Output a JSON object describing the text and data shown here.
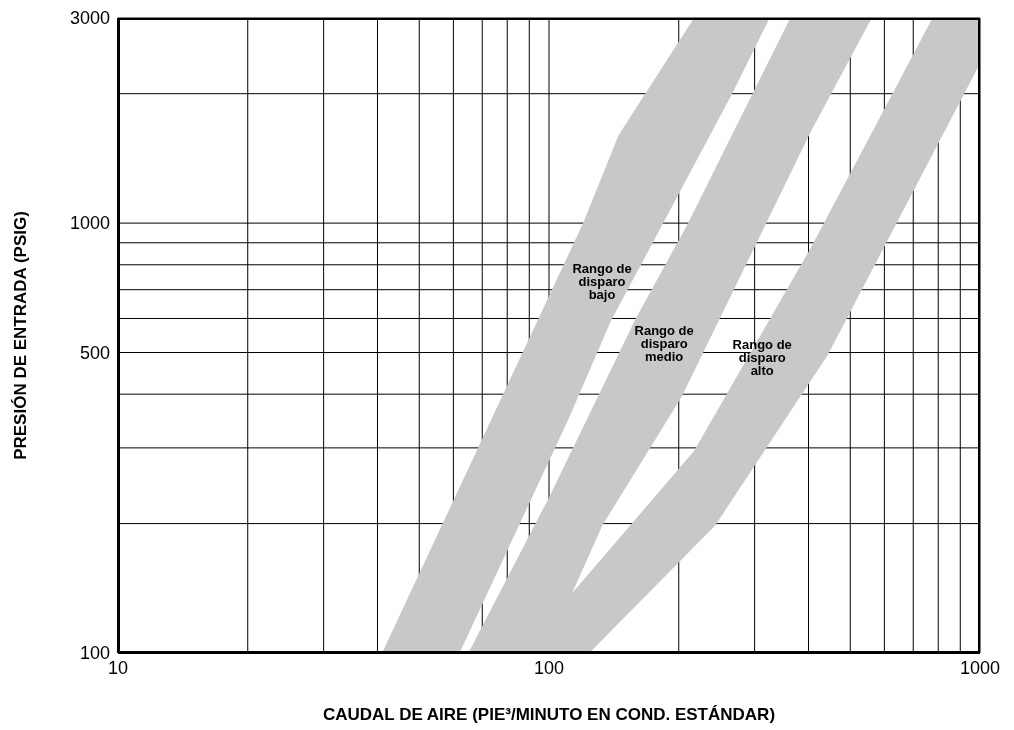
{
  "chart_data": {
    "type": "area",
    "xlabel": "CAUDAL DE AIRE (PIE³/MINUTO EN COND. ESTÁNDAR)",
    "ylabel": "PRESIÓN DE ENTRADA (PSIG)",
    "log": "xy",
    "grid": true,
    "xlim": [
      10,
      1000
    ],
    "ylim": [
      100,
      3000
    ],
    "xticks": [
      10,
      {
        "value": 20,
        "label": null
      },
      {
        "value": 30,
        "label": null
      },
      {
        "value": 40,
        "label": null
      },
      {
        "value": 50,
        "label": null
      },
      {
        "value": 60,
        "label": null
      },
      {
        "value": 70,
        "label": null
      },
      {
        "value": 80,
        "label": null
      },
      {
        "value": 90,
        "label": null
      },
      100,
      {
        "value": 200,
        "label": null
      },
      {
        "value": 300,
        "label": null
      },
      {
        "value": 400,
        "label": null
      },
      {
        "value": 500,
        "label": null
      },
      {
        "value": 600,
        "label": null
      },
      {
        "value": 700,
        "label": null
      },
      {
        "value": 800,
        "label": null
      },
      {
        "value": 900,
        "label": null
      },
      1000
    ],
    "yticks": [
      100,
      {
        "value": 200,
        "label": null
      },
      {
        "value": 300,
        "label": null
      },
      {
        "value": 400,
        "label": null
      },
      500,
      {
        "value": 600,
        "label": null
      },
      {
        "value": 700,
        "label": null
      },
      {
        "value": 800,
        "label": null
      },
      {
        "value": 900,
        "label": null
      },
      1000,
      {
        "value": 2000,
        "label": null
      },
      3000
    ],
    "series": [
      {
        "name": "Rango de disparo bajo",
        "color": "#c8c8c8",
        "x": [
          41,
          120,
          145,
          217,
          325,
          266,
          139,
          111,
          62
        ],
        "values": [
          100,
          1000,
          1600,
          3000,
          3000,
          2000,
          590,
          350,
          100
        ]
      },
      {
        "name": "Rango de disparo medio",
        "color": "#c8c8c8",
        "x": [
          65,
          100,
          159,
          208,
          363,
          561,
          406,
          203,
          133,
          98
        ],
        "values": [
          100,
          230,
          600,
          980,
          3000,
          3000,
          1640,
          394,
          198,
          100
        ]
      },
      {
        "name": "Rango de disparo alto",
        "color": "#c8c8c8",
        "x": [
          85,
          114,
          217,
          406,
          776,
          1000,
          1000,
          443,
          243,
          124
        ],
        "values": [
          100,
          139,
          295,
          880,
          3000,
          3000,
          2350,
          493,
          198,
          100
        ]
      }
    ]
  }
}
